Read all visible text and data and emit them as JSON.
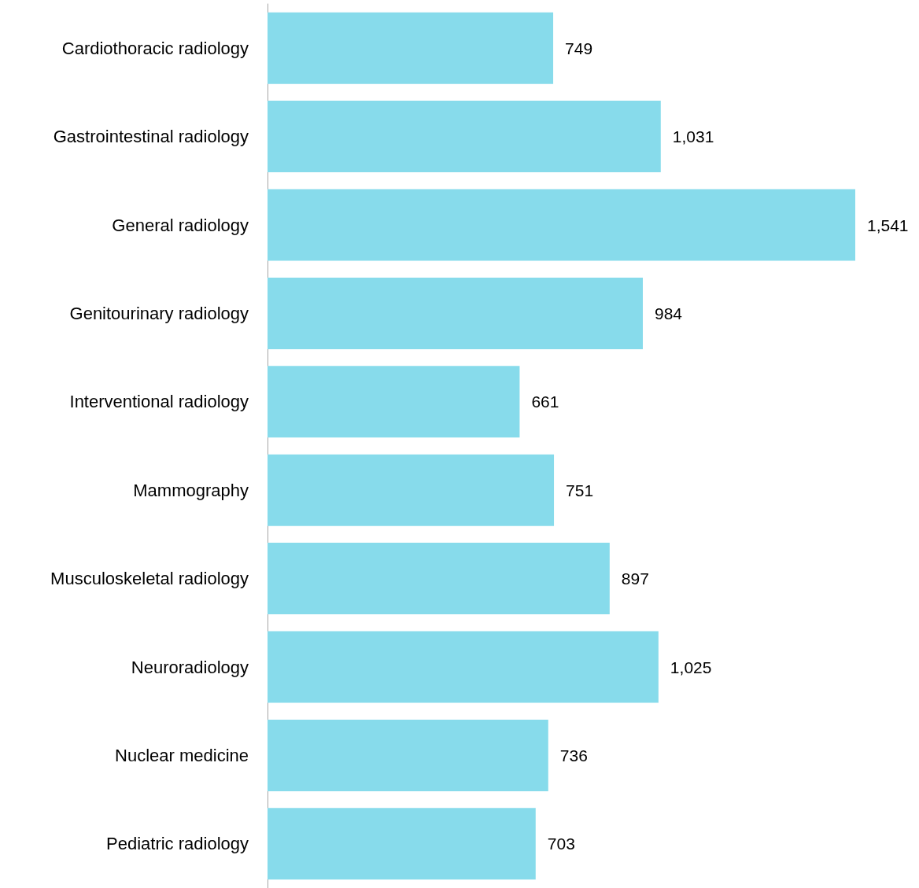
{
  "chart_data": {
    "type": "bar",
    "orientation": "horizontal",
    "categories": [
      "Cardiothoracic radiology",
      "Gastrointestinal radiology",
      "General radiology",
      "Genitourinary radiology",
      "Interventional radiology",
      "Mammography",
      "Musculoskeletal radiology",
      "Neuroradiology",
      "Nuclear medicine",
      "Pediatric radiology"
    ],
    "values": [
      749,
      1031,
      1541,
      984,
      661,
      751,
      897,
      1025,
      736,
      703
    ],
    "value_labels": [
      "749",
      "1,031",
      "1,541",
      "984",
      "661",
      "751",
      "897",
      "1,025",
      "736",
      "703"
    ],
    "color": "#87dbeb"
  }
}
